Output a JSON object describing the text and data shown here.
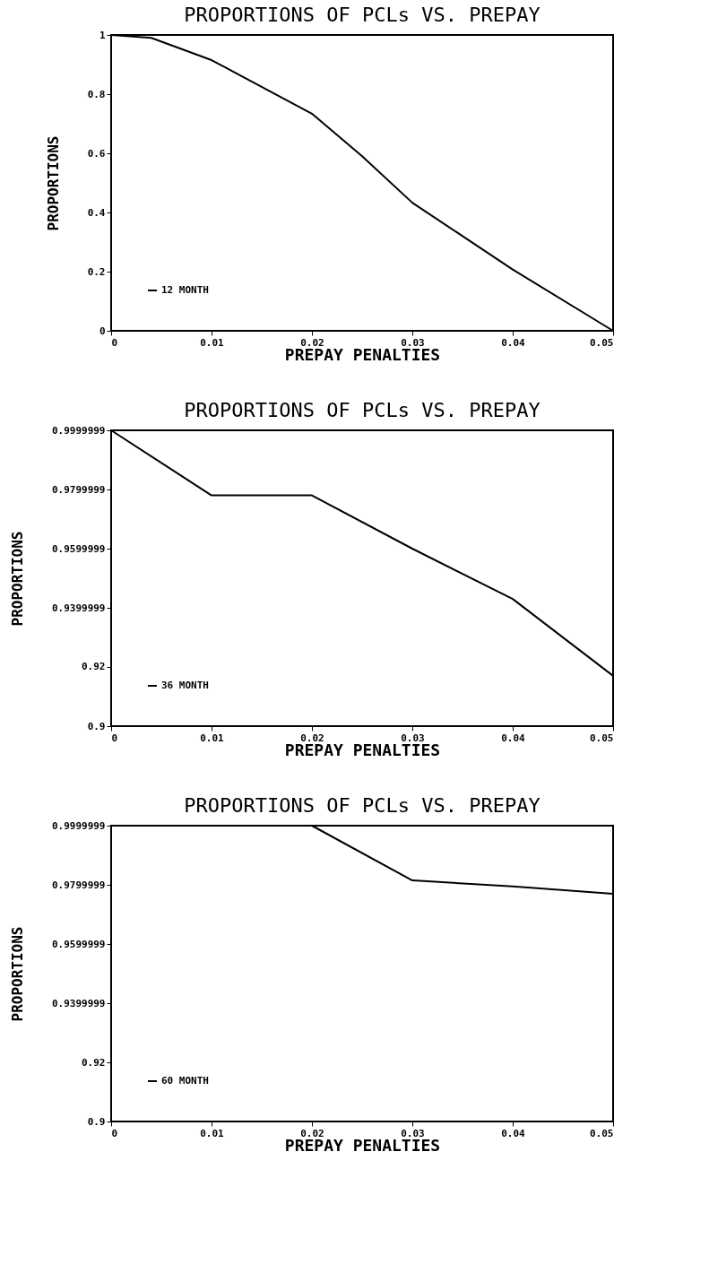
{
  "chart_data": [
    {
      "type": "line",
      "title": "PROPORTIONS OF PCLs VS. PREPAY",
      "xlabel": "PREPAY PENALTIES",
      "ylabel": "PROPORTIONS",
      "x": [
        0,
        0.004,
        0.01,
        0.02,
        0.025,
        0.03,
        0.04,
        0.05
      ],
      "xlim": [
        0,
        0.05
      ],
      "xticks": [
        0,
        0.01,
        0.02,
        0.03,
        0.04,
        0.05
      ],
      "ylim": [
        0,
        1
      ],
      "yticks": [
        0,
        0.2,
        0.4,
        0.6,
        0.8,
        1
      ],
      "legend": "bottom left",
      "series": [
        {
          "name": "12 MONTH",
          "color": "#000000",
          "values": [
            1,
            0.99,
            0.915,
            0.734,
            0.59,
            0.433,
            0.207,
            0
          ]
        }
      ]
    },
    {
      "type": "line",
      "title": "PROPORTIONS OF PCLs VS. PREPAY",
      "xlabel": "PREPAY PENALTIES",
      "ylabel": "PROPORTIONS",
      "x": [
        0,
        0.01,
        0.02,
        0.03,
        0.04,
        0.05
      ],
      "xlim": [
        0,
        0.05
      ],
      "xticks": [
        0,
        0.01,
        0.02,
        0.03,
        0.04,
        0.05
      ],
      "ylim": [
        0.9,
        0.9999999
      ],
      "yticks": [
        0.9,
        0.92,
        0.9399999,
        0.9599999,
        0.9799999,
        0.9999999
      ],
      "legend": "bottom left",
      "series": [
        {
          "name": "36 MONTH",
          "color": "#000000",
          "values": [
            0.9999999,
            0.978,
            0.978,
            0.96,
            0.943,
            0.917
          ]
        }
      ]
    },
    {
      "type": "line",
      "title": "PROPORTIONS OF PCLs VS. PREPAY",
      "xlabel": "PREPAY PENALTIES",
      "ylabel": "PROPORTIONS",
      "x": [
        0,
        0.01,
        0.02,
        0.03,
        0.04,
        0.05
      ],
      "xlim": [
        0,
        0.05
      ],
      "xticks": [
        0,
        0.01,
        0.02,
        0.03,
        0.04,
        0.05
      ],
      "ylim": [
        0.9,
        0.9999999
      ],
      "yticks": [
        0.9,
        0.92,
        0.9399999,
        0.9599999,
        0.9799999,
        0.9999999
      ],
      "legend": "bottom left",
      "series": [
        {
          "name": "60 MONTH",
          "color": "#000000",
          "values": [
            0.9999999,
            0.9999999,
            0.9999999,
            0.9815,
            0.9795,
            0.977
          ]
        }
      ]
    }
  ]
}
